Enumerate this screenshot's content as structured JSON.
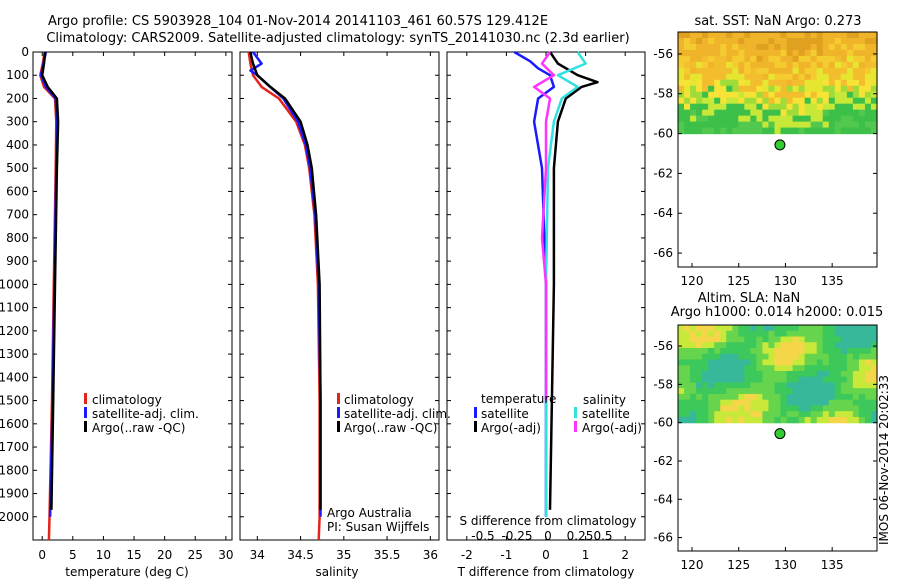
{
  "header": {
    "line1": "Argo profile: CS 5903928_104 01-Nov-2014 20141103_461 60.57S 129.412E",
    "line2": "Climatology: CARS2009. Satellite-adjusted climatology: synTS_20141030.nc (2.3d earlier)"
  },
  "colors": {
    "climatology": "#e3241b",
    "satellite": "#1a1aff",
    "argo": "#000000",
    "sal_satellite": "#33e0e0",
    "sal_argo": "#ff33ff"
  },
  "chart_data": [
    {
      "type": "line",
      "panel": "temperature",
      "xlabel": "temperature (deg C)",
      "ylabel": "",
      "xlim": [
        -1.5,
        31
      ],
      "ylim": [
        2100,
        0
      ],
      "xticks": [
        0,
        5,
        10,
        15,
        20,
        25,
        30
      ],
      "yticks": [
        0,
        100,
        200,
        300,
        400,
        500,
        600,
        700,
        800,
        900,
        1000,
        1100,
        1200,
        1300,
        1400,
        1500,
        1600,
        1700,
        1800,
        1900,
        2000
      ],
      "legend": {
        "position": "lower-middle",
        "entries": [
          "climatology",
          "satellite-adj. clim.",
          "Argo(..raw -QC)"
        ]
      },
      "series": [
        {
          "name": "climatology",
          "color_key": "climatology",
          "depth": [
            0,
            50,
            100,
            150,
            200,
            300,
            500,
            1000,
            1500,
            2000,
            2100
          ],
          "values": [
            0.4,
            0.1,
            -0.3,
            0.3,
            2.1,
            2.3,
            2.2,
            1.9,
            1.6,
            1.2,
            1.1
          ]
        },
        {
          "name": "satellite-adj. clim.",
          "color_key": "satellite",
          "depth": [
            0,
            50,
            100,
            150,
            200,
            300,
            500,
            1000,
            1500,
            2000
          ],
          "values": [
            0.6,
            0.2,
            -0.2,
            0.6,
            2.2,
            2.4,
            2.3,
            2.0,
            1.7,
            1.3
          ]
        },
        {
          "name": "Argo(..raw -QC)",
          "color_key": "argo",
          "depth": [
            0,
            50,
            100,
            150,
            200,
            300,
            500,
            1000,
            1500,
            1970
          ],
          "values": [
            0.5,
            0.3,
            0.0,
            0.9,
            2.4,
            2.6,
            2.4,
            2.1,
            1.8,
            1.5
          ]
        }
      ]
    },
    {
      "type": "line",
      "panel": "salinity",
      "xlabel": "salinity",
      "xlim": [
        33.8,
        36.1
      ],
      "ylim": [
        2100,
        0
      ],
      "xticks": [
        34,
        34.5,
        35,
        35.5,
        36
      ],
      "legend": {
        "position": "lower-right",
        "entries": [
          "climatology",
          "satellite-adj. clim.",
          "Argo(..raw -QC)"
        ]
      },
      "annotations": [
        "Argo Australia",
        "PI: Susan Wijffels"
      ],
      "series": [
        {
          "name": "climatology",
          "color_key": "climatology",
          "depth": [
            0,
            50,
            100,
            150,
            200,
            300,
            400,
            500,
            700,
            1000,
            1500,
            2000,
            2100
          ],
          "values": [
            33.9,
            33.92,
            33.95,
            34.05,
            34.25,
            34.45,
            34.55,
            34.6,
            34.66,
            34.7,
            34.72,
            34.72,
            34.71
          ]
        },
        {
          "name": "satellite-adj. clim.",
          "color_key": "satellite",
          "depth": [
            0,
            50,
            80,
            100,
            150,
            200,
            300,
            400,
            500,
            700,
            1000,
            1500,
            2000
          ],
          "values": [
            33.95,
            34.05,
            33.92,
            34.0,
            34.15,
            34.3,
            34.47,
            34.56,
            34.61,
            34.67,
            34.71,
            34.73,
            34.73
          ]
        },
        {
          "name": "Argo(..raw -QC)",
          "color_key": "argo",
          "depth": [
            0,
            50,
            100,
            150,
            200,
            300,
            400,
            500,
            700,
            1000,
            1500,
            1970
          ],
          "values": [
            33.92,
            33.95,
            34.0,
            34.15,
            34.32,
            34.5,
            34.58,
            34.63,
            34.68,
            34.72,
            34.73,
            34.73
          ]
        }
      ]
    },
    {
      "type": "line",
      "panel": "difference",
      "xlabel": "T difference from climatology",
      "toplabel": "S difference from climatology",
      "xlim": [
        -2.5,
        2.5
      ],
      "ylim": [
        2100,
        0
      ],
      "xticks": [
        -2,
        -1,
        0,
        1,
        2
      ],
      "sticks": [
        "-0.5",
        "-0.25",
        "0",
        "0.25",
        "0.5"
      ],
      "legend": {
        "position": "lower-middle",
        "group1": "temperature",
        "group2": "salinity",
        "entries": [
          "satellite",
          "Argo(-adj)",
          "satellite",
          "Argo(-adj)"
        ]
      },
      "series": [
        {
          "name": "T satellite",
          "color_key": "satellite",
          "depth": [
            0,
            40,
            70,
            100,
            150,
            200,
            300,
            500,
            1000,
            1500,
            2000
          ],
          "values": [
            -0.8,
            -0.4,
            -0.2,
            0.1,
            0.2,
            -0.2,
            -0.3,
            -0.1,
            0.0,
            0.0,
            0.0
          ]
        },
        {
          "name": "T Argo(-adj)",
          "color_key": "argo",
          "depth": [
            0,
            50,
            100,
            130,
            150,
            200,
            300,
            500,
            1000,
            1500,
            1970
          ],
          "values": [
            0.1,
            0.3,
            0.8,
            1.3,
            0.9,
            0.5,
            0.3,
            0.2,
            0.2,
            0.15,
            0.1
          ]
        },
        {
          "name": "S satellite",
          "color_key": "sal_satellite",
          "depth": [
            0,
            50,
            100,
            150,
            200,
            300,
            500,
            1000,
            1500,
            2000
          ],
          "values": [
            0.8,
            1.0,
            0.3,
            0.8,
            0.4,
            0.2,
            0.05,
            0.0,
            0.0,
            0.0
          ]
        },
        {
          "name": "S Argo(-adj)",
          "color_key": "sal_argo",
          "depth": [
            0,
            50,
            100,
            150,
            200,
            300,
            500,
            800,
            1000,
            1500
          ],
          "values": [
            0.1,
            -0.1,
            0.2,
            -0.3,
            0.1,
            0.0,
            0.0,
            -0.1,
            0.0,
            0.0
          ]
        }
      ]
    },
    {
      "type": "heatmap",
      "panel": "sst_map",
      "title": "sat. SST: NaN Argo: 0.273",
      "xticks": [
        120,
        125,
        130,
        135
      ],
      "yticks": [
        -56,
        -58,
        -60,
        -62,
        -64,
        -66
      ],
      "xlim": [
        118.5,
        139.8
      ],
      "ylim": [
        -66.7,
        -54.9
      ],
      "data_extent_lat": [
        -60,
        -54.9
      ],
      "marker": {
        "lon": 129.412,
        "lat": -60.57
      }
    },
    {
      "type": "heatmap",
      "panel": "sla_map",
      "title1": "Altim. SLA: NaN",
      "title2": "Argo h1000: 0.014 h2000: 0.015",
      "xticks": [
        120,
        125,
        130,
        135
      ],
      "yticks": [
        -56,
        -58,
        -60,
        -62,
        -64,
        -66
      ],
      "xlim": [
        118.5,
        139.8
      ],
      "ylim": [
        -66.7,
        -54.9
      ],
      "data_extent_lat": [
        -60,
        -54.9
      ],
      "marker": {
        "lon": 129.412,
        "lat": -60.57
      }
    }
  ],
  "footer": {
    "stamp": "IMOS 06-Nov-2014 20:02:33"
  }
}
